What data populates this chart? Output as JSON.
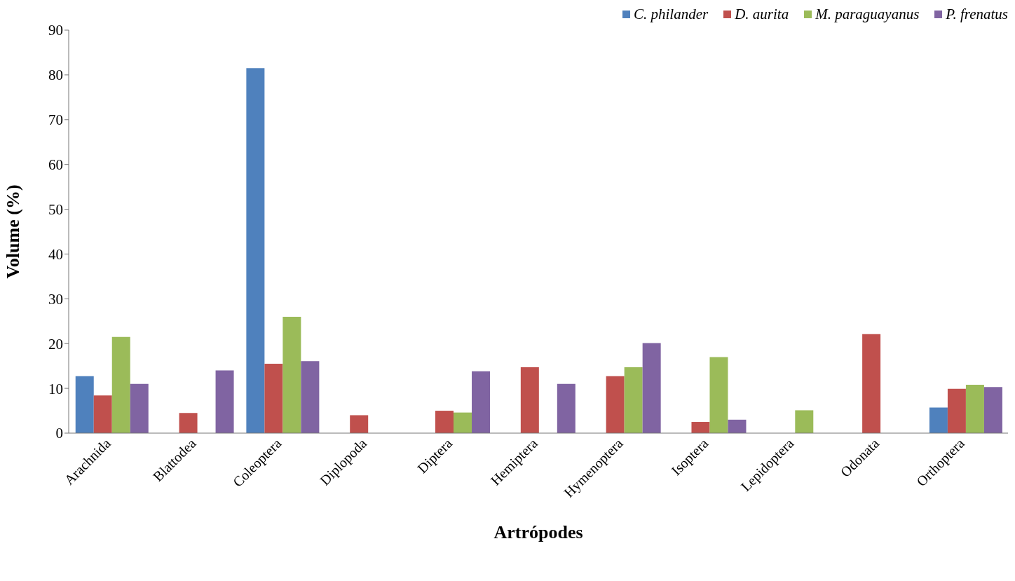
{
  "chart_data": {
    "type": "bar",
    "xlabel": "Artrópodes",
    "ylabel": "Volume (%)",
    "categories": [
      "Arachnida",
      "Blattodea",
      "Coleoptera",
      "Diplopoda",
      "Diptera",
      "Hemiptera",
      "Hymenoptera",
      "Isoptera",
      "Lepidoptera",
      "Odonata",
      "Orthoptera"
    ],
    "series": [
      {
        "name": "C. philander",
        "color": "#4f81bd",
        "values": [
          12.7,
          0,
          81.5,
          0,
          0,
          0,
          0,
          0,
          0,
          0,
          5.7
        ]
      },
      {
        "name": "D. aurita",
        "color": "#c0504d",
        "values": [
          8.4,
          4.5,
          15.5,
          4.0,
          5.0,
          14.7,
          12.7,
          2.5,
          0,
          22.1,
          9.9
        ]
      },
      {
        "name": "M. paraguayanus",
        "color": "#9bbb59",
        "values": [
          21.5,
          0,
          26.0,
          0,
          4.6,
          0,
          14.7,
          17.0,
          5.1,
          0,
          10.8
        ]
      },
      {
        "name": "P. frenatus",
        "color": "#8064a2",
        "values": [
          11.0,
          14.0,
          16.1,
          0,
          13.8,
          11.0,
          20.1,
          3.0,
          0,
          0,
          10.3
        ]
      }
    ],
    "ylim": [
      0,
      90
    ],
    "yticks": [
      0,
      10,
      20,
      30,
      40,
      50,
      60,
      70,
      80,
      90
    ],
    "grid": false,
    "legend": "top right"
  }
}
